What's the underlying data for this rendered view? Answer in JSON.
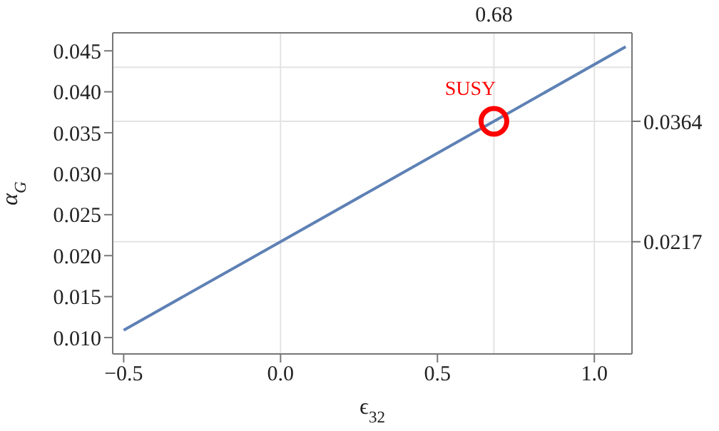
{
  "chart_data": {
    "type": "line",
    "xlabel": "ϵ$_{32}$",
    "ylabel": "α$_{G}$",
    "xlim": [
      -0.535,
      1.12
    ],
    "xticks": [
      {
        "value": -0.5,
        "label": "−0.5"
      },
      {
        "value": 0,
        "label": "0.0"
      },
      0.5,
      {
        "value": 1,
        "label": "1.0"
      }
    ],
    "ylim": [
      0.008,
      0.0472
    ],
    "yticks": [
      {
        "value": 0.01,
        "label": "0.010"
      },
      0.015,
      {
        "value": 0.02,
        "label": "0.020"
      },
      0.025,
      {
        "value": 0.03,
        "label": "0.030"
      },
      0.035,
      {
        "value": 0.04,
        "label": "0.040"
      },
      0.045
    ],
    "y2lim": [
      0.008,
      0.0472
    ],
    "y2ticks": [
      0.0217,
      0.0364
    ],
    "series": [
      {
        "color": "#5e81b5",
        "x": [
          -0.5,
          0,
          0.68,
          1.1
        ],
        "values": [
          0.0109,
          0.0217,
          0.0364,
          0.0455
        ]
      },
      {
        "type": "scatter",
        "name": "SUSY",
        "color": "#ff0000",
        "marker": "circle",
        "x": [
          0.68
        ],
        "values": [
          0.0364
        ]
      }
    ],
    "ref_lines": [
      {
        "axis": "x",
        "value": 0,
        "color": "#e3e3e3"
      },
      {
        "axis": "x",
        "value": 0.68,
        "label": "0.68",
        "color": "#e3e3e3"
      },
      {
        "axis": "x",
        "value": 1,
        "color": "#e3e3e3"
      },
      {
        "axis": "y",
        "value": 0.0217,
        "color": "#e3e3e3"
      },
      {
        "axis": "y",
        "value": 0.0364,
        "color": "#e3e3e3"
      },
      {
        "axis": "y",
        "value": 0.043,
        "color": "#e3e3e3"
      }
    ],
    "grid": false,
    "legend": false
  }
}
